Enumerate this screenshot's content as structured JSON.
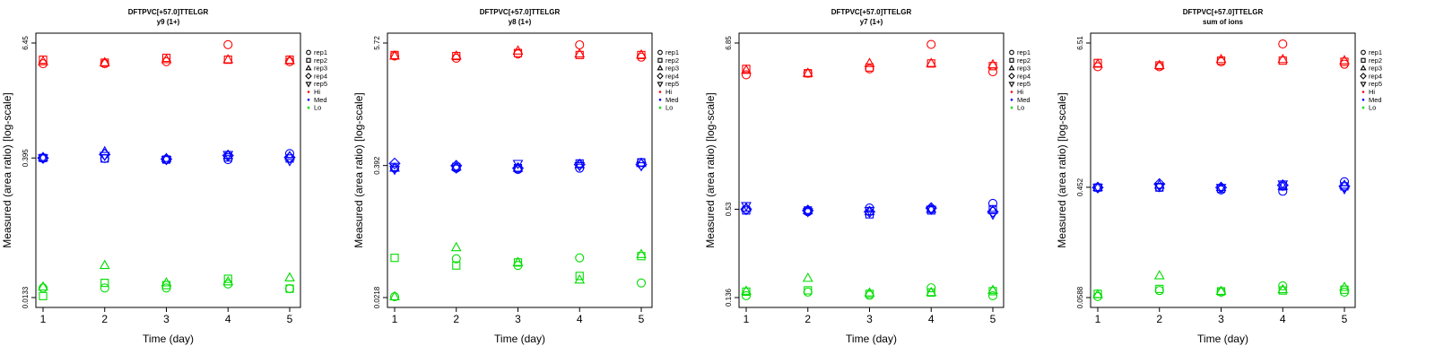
{
  "figure": {
    "xlabel": "Time (day)",
    "ylabel": "Measured (area ratio) [log-scale]",
    "legend": [
      "rep1",
      "rep2",
      "rep3",
      "rep4",
      "rep5",
      "Hi",
      "Med",
      "Lo"
    ]
  },
  "chart_data": [
    {
      "type": "scatter",
      "title": "DFTPVC[+57.0]TTELGR",
      "subtitle": "y9 (1+)",
      "xlabel": "Time (day)",
      "ylabel": "Measured (area ratio) [log-scale]",
      "y_scale": "log",
      "x_ticks": [
        1,
        2,
        3,
        4,
        5
      ],
      "y_tick_labels": [
        "0.0133",
        "0.395",
        "6.45"
      ],
      "y_ticks": [
        0.0133,
        0.395,
        6.45
      ],
      "ylim": [
        0.0133,
        6.45
      ],
      "legend": [
        "rep1",
        "rep2",
        "rep3",
        "rep4",
        "rep5",
        "Hi",
        "Med",
        "Lo"
      ],
      "legend_position": "right",
      "colors": {
        "Hi": "#ff0000",
        "Med": "#0000ff",
        "Lo": "#00dd00"
      },
      "series": [
        {
          "level": "Hi",
          "name": "rep1",
          "marker": "circle",
          "x": [
            1,
            2,
            3,
            4,
            5
          ],
          "y": [
            3.9,
            3.9,
            4.1,
            6.2,
            4.1
          ]
        },
        {
          "level": "Hi",
          "name": "rep2",
          "marker": "square",
          "x": [
            1,
            2,
            3,
            4,
            5
          ],
          "y": [
            4.3,
            4.0,
            4.5,
            4.3,
            4.3
          ]
        },
        {
          "level": "Hi",
          "name": "rep3",
          "marker": "triangle-up",
          "x": [
            1,
            2,
            3,
            4,
            5
          ],
          "y": [
            4.1,
            4.0,
            4.3,
            4.3,
            4.2
          ]
        },
        {
          "level": "Med",
          "name": "rep1",
          "marker": "circle",
          "x": [
            1,
            2,
            3,
            4,
            5
          ],
          "y": [
            0.395,
            0.39,
            0.38,
            0.38,
            0.44
          ]
        },
        {
          "level": "Med",
          "name": "rep2",
          "marker": "square",
          "x": [
            1,
            2,
            3,
            4,
            5
          ],
          "y": [
            0.395,
            0.39,
            0.38,
            0.4,
            0.39
          ]
        },
        {
          "level": "Med",
          "name": "rep3",
          "marker": "triangle-up",
          "x": [
            1,
            2,
            3,
            4,
            5
          ],
          "y": [
            0.4,
            0.46,
            0.39,
            0.42,
            0.41
          ]
        },
        {
          "level": "Med",
          "name": "rep4",
          "marker": "diamond",
          "x": [
            1,
            2,
            3,
            4,
            5
          ],
          "y": [
            0.395,
            0.43,
            0.385,
            0.42,
            0.4
          ]
        },
        {
          "level": "Med",
          "name": "rep5",
          "marker": "triangle-down",
          "x": [
            1,
            2,
            3,
            4,
            5
          ],
          "y": [
            0.395,
            0.42,
            0.38,
            0.43,
            0.37
          ]
        },
        {
          "level": "Lo",
          "name": "rep1",
          "marker": "circle",
          "x": [
            1,
            2,
            3,
            4,
            5
          ],
          "y": [
            0.0168,
            0.0168,
            0.0168,
            0.0185,
            0.0165
          ]
        },
        {
          "level": "Lo",
          "name": "rep2",
          "marker": "square",
          "x": [
            1,
            2,
            3,
            4,
            5
          ],
          "y": [
            0.0138,
            0.019,
            0.018,
            0.021,
            0.0165
          ]
        },
        {
          "level": "Lo",
          "name": "rep3",
          "marker": "triangle-up",
          "x": [
            1,
            2,
            3,
            4,
            5
          ],
          "y": [
            0.0172,
            0.029,
            0.019,
            0.0195,
            0.0215
          ]
        }
      ]
    },
    {
      "type": "scatter",
      "title": "DFTPVC[+57.0]TTELGR",
      "subtitle": "y8 (1+)",
      "xlabel": "Time (day)",
      "ylabel": "Measured (area ratio) [log-scale]",
      "y_scale": "log",
      "x_ticks": [
        1,
        2,
        3,
        4,
        5
      ],
      "y_tick_labels": [
        "0.0218",
        "0.392",
        "5.72"
      ],
      "y_ticks": [
        0.0218,
        0.392,
        5.72
      ],
      "ylim": [
        0.0218,
        5.72
      ],
      "legend": [
        "rep1",
        "rep2",
        "rep3",
        "rep4",
        "rep5",
        "Hi",
        "Med",
        "Lo"
      ],
      "legend_position": "right",
      "colors": {
        "Hi": "#ff0000",
        "Med": "#0000ff",
        "Lo": "#00dd00"
      },
      "series": [
        {
          "level": "Hi",
          "name": "rep1",
          "marker": "circle",
          "x": [
            1,
            2,
            3,
            4,
            5
          ],
          "y": [
            4.3,
            4.1,
            4.5,
            5.5,
            4.2
          ]
        },
        {
          "level": "Hi",
          "name": "rep2",
          "marker": "square",
          "x": [
            1,
            2,
            3,
            4,
            5
          ],
          "y": [
            4.4,
            4.3,
            4.6,
            4.4,
            4.4
          ]
        },
        {
          "level": "Hi",
          "name": "rep3",
          "marker": "triangle-up",
          "x": [
            1,
            2,
            3,
            4,
            5
          ],
          "y": [
            4.3,
            4.3,
            4.8,
            4.5,
            4.4
          ]
        },
        {
          "level": "Med",
          "name": "rep1",
          "marker": "circle",
          "x": [
            1,
            2,
            3,
            4,
            5
          ],
          "y": [
            0.37,
            0.37,
            0.36,
            0.37,
            0.42
          ]
        },
        {
          "level": "Med",
          "name": "rep2",
          "marker": "square",
          "x": [
            1,
            2,
            3,
            4,
            5
          ],
          "y": [
            0.38,
            0.38,
            0.37,
            0.41,
            0.42
          ]
        },
        {
          "level": "Med",
          "name": "rep3",
          "marker": "triangle-up",
          "x": [
            1,
            2,
            3,
            4,
            5
          ],
          "y": [
            0.37,
            0.38,
            0.37,
            0.4,
            0.41
          ]
        },
        {
          "level": "Med",
          "name": "rep4",
          "marker": "diamond",
          "x": [
            1,
            2,
            3,
            4,
            5
          ],
          "y": [
            0.41,
            0.39,
            0.37,
            0.4,
            0.4
          ]
        },
        {
          "level": "Med",
          "name": "rep5",
          "marker": "triangle-down",
          "x": [
            1,
            2,
            3,
            4,
            5
          ],
          "y": [
            0.36,
            0.37,
            0.41,
            0.39,
            0.39
          ]
        },
        {
          "level": "Lo",
          "name": "rep1",
          "marker": "circle",
          "x": [
            1,
            2,
            3,
            4,
            5
          ],
          "y": [
            0.0222,
            0.051,
            0.044,
            0.052,
            0.03
          ]
        },
        {
          "level": "Lo",
          "name": "rep2",
          "marker": "square",
          "x": [
            1,
            2,
            3,
            4,
            5
          ],
          "y": [
            0.052,
            0.044,
            0.047,
            0.035,
            0.054
          ]
        },
        {
          "level": "Lo",
          "name": "rep3",
          "marker": "triangle-up",
          "x": [
            1,
            2,
            3,
            4,
            5
          ],
          "y": [
            0.0222,
            0.065,
            0.047,
            0.032,
            0.056
          ]
        }
      ]
    },
    {
      "type": "scatter",
      "title": "DFTPVC[+57.0]TTELGR",
      "subtitle": "y7 (1+)",
      "xlabel": "Time (day)",
      "ylabel": "Measured (area ratio) [log-scale]",
      "y_scale": "log",
      "x_ticks": [
        1,
        2,
        3,
        4,
        5
      ],
      "y_tick_labels": [
        "0.136",
        "0.53",
        "6.85"
      ],
      "y_ticks": [
        0.136,
        0.53,
        6.85
      ],
      "ylim": [
        0.136,
        6.85
      ],
      "legend": [
        "rep1",
        "rep2",
        "rep3",
        "rep4",
        "rep5",
        "Hi",
        "Med",
        "Lo"
      ],
      "legend_position": "right",
      "colors": {
        "Hi": "#ff0000",
        "Med": "#0000ff",
        "Lo": "#00dd00"
      },
      "series": [
        {
          "level": "Hi",
          "name": "rep1",
          "marker": "circle",
          "x": [
            1,
            2,
            3,
            4,
            5
          ],
          "y": [
            4.2,
            4.3,
            4.6,
            6.7,
            4.4
          ]
        },
        {
          "level": "Hi",
          "name": "rep2",
          "marker": "square",
          "x": [
            1,
            2,
            3,
            4,
            5
          ],
          "y": [
            4.6,
            4.3,
            4.7,
            5.0,
            4.8
          ]
        },
        {
          "level": "Hi",
          "name": "rep3",
          "marker": "triangle-up",
          "x": [
            1,
            2,
            3,
            4,
            5
          ],
          "y": [
            4.5,
            4.3,
            5.0,
            5.0,
            4.9
          ]
        },
        {
          "level": "Med",
          "name": "rep1",
          "marker": "circle",
          "x": [
            1,
            2,
            3,
            4,
            5
          ],
          "y": [
            0.53,
            0.51,
            0.54,
            0.53,
            0.58
          ]
        },
        {
          "level": "Med",
          "name": "rep2",
          "marker": "square",
          "x": [
            1,
            2,
            3,
            4,
            5
          ],
          "y": [
            0.52,
            0.52,
            0.49,
            0.52,
            0.53
          ]
        },
        {
          "level": "Med",
          "name": "rep3",
          "marker": "triangle-up",
          "x": [
            1,
            2,
            3,
            4,
            5
          ],
          "y": [
            0.54,
            0.52,
            0.51,
            0.53,
            0.52
          ]
        },
        {
          "level": "Med",
          "name": "rep4",
          "marker": "diamond",
          "x": [
            1,
            2,
            3,
            4,
            5
          ],
          "y": [
            0.53,
            0.52,
            0.51,
            0.54,
            0.51
          ]
        },
        {
          "level": "Med",
          "name": "rep5",
          "marker": "triangle-down",
          "x": [
            1,
            2,
            3,
            4,
            5
          ],
          "y": [
            0.56,
            0.51,
            0.52,
            0.53,
            0.49
          ]
        },
        {
          "level": "Lo",
          "name": "rep1",
          "marker": "circle",
          "x": [
            1,
            2,
            3,
            4,
            5
          ],
          "y": [
            0.14,
            0.148,
            0.141,
            0.158,
            0.14
          ]
        },
        {
          "level": "Lo",
          "name": "rep2",
          "marker": "square",
          "x": [
            1,
            2,
            3,
            4,
            5
          ],
          "y": [
            0.149,
            0.152,
            0.144,
            0.147,
            0.15
          ]
        },
        {
          "level": "Lo",
          "name": "rep3",
          "marker": "triangle-up",
          "x": [
            1,
            2,
            3,
            4,
            5
          ],
          "y": [
            0.15,
            0.183,
            0.146,
            0.147,
            0.152
          ]
        }
      ]
    },
    {
      "type": "scatter",
      "title": "DFTPVC[+57.0]TTELGR",
      "subtitle": "sum of ions",
      "xlabel": "Time (day)",
      "ylabel": "Measured (area ratio) [log-scale]",
      "y_scale": "log",
      "x_ticks": [
        1,
        2,
        3,
        4,
        5
      ],
      "y_tick_labels": [
        "0.0588",
        "0.452",
        "6.51"
      ],
      "y_ticks": [
        0.0588,
        0.452,
        6.51
      ],
      "ylim": [
        0.0588,
        6.51
      ],
      "legend": [
        "rep1",
        "rep2",
        "rep3",
        "rep4",
        "rep5",
        "Hi",
        "Med",
        "Lo"
      ],
      "legend_position": "right",
      "colors": {
        "Hi": "#ff0000",
        "Med": "#0000ff",
        "Lo": "#00dd00"
      },
      "series": [
        {
          "level": "Hi",
          "name": "rep1",
          "marker": "circle",
          "x": [
            1,
            2,
            3,
            4,
            5
          ],
          "y": [
            4.2,
            4.2,
            4.6,
            6.4,
            4.4
          ]
        },
        {
          "level": "Hi",
          "name": "rep2",
          "marker": "square",
          "x": [
            1,
            2,
            3,
            4,
            5
          ],
          "y": [
            4.5,
            4.3,
            4.7,
            4.7,
            4.6
          ]
        },
        {
          "level": "Hi",
          "name": "rep3",
          "marker": "triangle-up",
          "x": [
            1,
            2,
            3,
            4,
            5
          ],
          "y": [
            4.4,
            4.3,
            4.8,
            4.8,
            4.7
          ]
        },
        {
          "level": "Med",
          "name": "rep1",
          "marker": "circle",
          "x": [
            1,
            2,
            3,
            4,
            5
          ],
          "y": [
            0.45,
            0.45,
            0.43,
            0.42,
            0.5
          ]
        },
        {
          "level": "Med",
          "name": "rep2",
          "marker": "square",
          "x": [
            1,
            2,
            3,
            4,
            5
          ],
          "y": [
            0.45,
            0.45,
            0.44,
            0.46,
            0.46
          ]
        },
        {
          "level": "Med",
          "name": "rep3",
          "marker": "triangle-up",
          "x": [
            1,
            2,
            3,
            4,
            5
          ],
          "y": [
            0.45,
            0.47,
            0.45,
            0.46,
            0.47
          ]
        },
        {
          "level": "Med",
          "name": "rep4",
          "marker": "diamond",
          "x": [
            1,
            2,
            3,
            4,
            5
          ],
          "y": [
            0.45,
            0.48,
            0.45,
            0.47,
            0.46
          ]
        },
        {
          "level": "Med",
          "name": "rep5",
          "marker": "triangle-down",
          "x": [
            1,
            2,
            3,
            4,
            5
          ],
          "y": [
            0.45,
            0.46,
            0.45,
            0.48,
            0.44
          ]
        },
        {
          "level": "Lo",
          "name": "rep1",
          "marker": "circle",
          "x": [
            1,
            2,
            3,
            4,
            5
          ],
          "y": [
            0.06,
            0.067,
            0.065,
            0.073,
            0.065
          ]
        },
        {
          "level": "Lo",
          "name": "rep2",
          "marker": "square",
          "x": [
            1,
            2,
            3,
            4,
            5
          ],
          "y": [
            0.063,
            0.069,
            0.066,
            0.067,
            0.068
          ]
        },
        {
          "level": "Lo",
          "name": "rep3",
          "marker": "triangle-up",
          "x": [
            1,
            2,
            3,
            4,
            5
          ],
          "y": [
            0.062,
            0.088,
            0.066,
            0.068,
            0.071
          ]
        }
      ]
    }
  ]
}
